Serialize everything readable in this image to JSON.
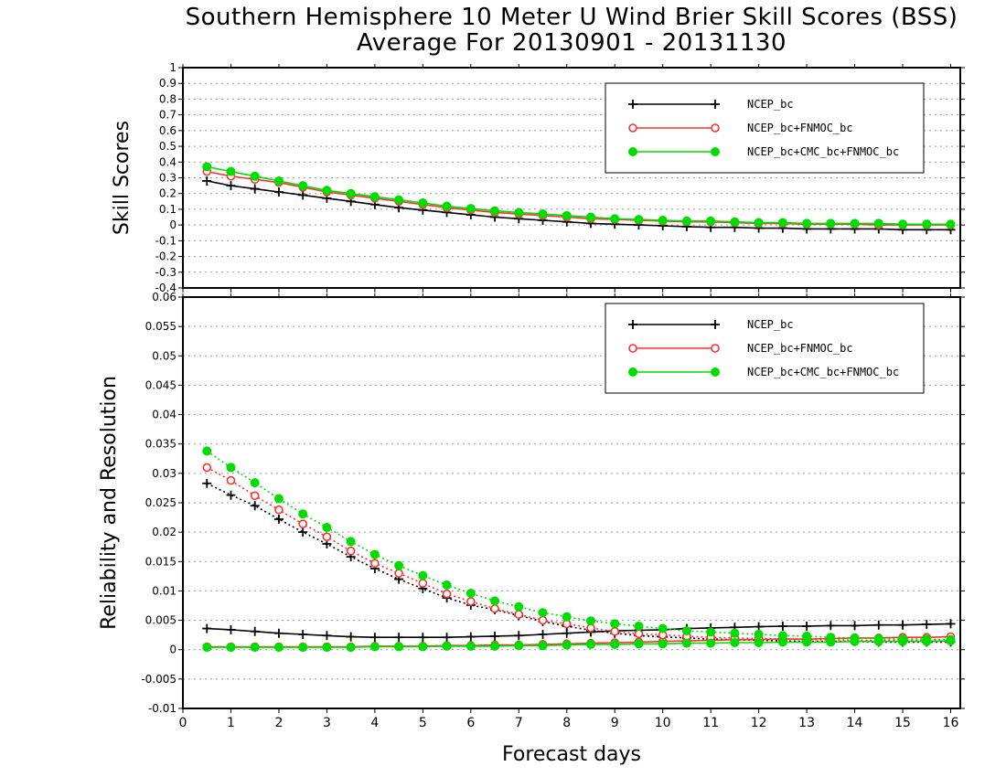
{
  "title_line1": "Southern Hemisphere 10 Meter U Wind Brier Skill Scores (BSS)",
  "title_line2": "Average For 20130901 - 20131130",
  "chart_data": [
    {
      "type": "line",
      "ylabel": "Skill Scores",
      "xlabel": "Forecast days",
      "xlim": [
        0,
        16.2
      ],
      "ylim": [
        -0.4,
        1
      ],
      "xticks": [
        "0",
        "1",
        "2",
        "3",
        "4",
        "5",
        "6",
        "7",
        "8",
        "9",
        "10",
        "11",
        "12",
        "13",
        "14",
        "15",
        "16"
      ],
      "yticks": [
        "-0.4",
        "-0.3",
        "-0.2",
        "-0.1",
        "0",
        "0.1",
        "0.2",
        "0.3",
        "0.4",
        "0.5",
        "0.6",
        "0.7",
        "0.8",
        "0.9",
        "1"
      ],
      "grid": true,
      "legend_position": "top-right",
      "x": [
        0.5,
        1,
        1.5,
        2,
        2.5,
        3,
        3.5,
        4,
        4.5,
        5,
        5.5,
        6,
        6.5,
        7,
        7.5,
        8,
        8.5,
        9,
        9.5,
        10,
        10.5,
        11,
        11.5,
        12,
        12.5,
        13,
        13.5,
        14,
        14.5,
        15,
        15.5,
        16
      ],
      "series": [
        {
          "name": "NCEP_bc",
          "color": "#000000",
          "marker": "plus",
          "values": [
            0.28,
            0.25,
            0.23,
            0.21,
            0.19,
            0.17,
            0.15,
            0.13,
            0.11,
            0.095,
            0.08,
            0.065,
            0.05,
            0.04,
            0.03,
            0.02,
            0.01,
            0.005,
            0.0,
            -0.005,
            -0.01,
            -0.015,
            -0.015,
            -0.02,
            -0.02,
            -0.025,
            -0.025,
            -0.025,
            -0.025,
            -0.03,
            -0.03,
            -0.03
          ]
        },
        {
          "name": "NCEP_bc+FNMOC_bc",
          "color": "#ff3030",
          "marker": "open-circle",
          "values": [
            0.34,
            0.31,
            0.29,
            0.27,
            0.24,
            0.21,
            0.19,
            0.17,
            0.15,
            0.13,
            0.11,
            0.095,
            0.08,
            0.07,
            0.06,
            0.05,
            0.04,
            0.035,
            0.03,
            0.025,
            0.02,
            0.02,
            0.015,
            0.01,
            0.01,
            0.005,
            0.005,
            0.005,
            0.0,
            0.0,
            0.0,
            0.0
          ]
        },
        {
          "name": "NCEP_bc+CMC_bc+FNMOC_bc",
          "color": "#00dd00",
          "marker": "filled-circle",
          "values": [
            0.37,
            0.34,
            0.31,
            0.28,
            0.25,
            0.22,
            0.2,
            0.18,
            0.16,
            0.14,
            0.12,
            0.105,
            0.09,
            0.08,
            0.07,
            0.06,
            0.05,
            0.04,
            0.035,
            0.03,
            0.025,
            0.025,
            0.02,
            0.015,
            0.015,
            0.01,
            0.01,
            0.01,
            0.01,
            0.005,
            0.005,
            0.005
          ]
        }
      ]
    },
    {
      "type": "line",
      "ylabel": "Reliability and Resolution",
      "xlabel": "Forecast days",
      "xlim": [
        0,
        16.2
      ],
      "ylim": [
        -0.01,
        0.06
      ],
      "xticks": [
        "0",
        "1",
        "2",
        "3",
        "4",
        "5",
        "6",
        "7",
        "8",
        "9",
        "10",
        "11",
        "12",
        "13",
        "14",
        "15",
        "16"
      ],
      "yticks": [
        "-0.01",
        "-0.005",
        "0",
        "0.005",
        "0.01",
        "0.015",
        "0.02",
        "0.025",
        "0.03",
        "0.035",
        "0.04",
        "0.045",
        "0.05",
        "0.055",
        "0.06"
      ],
      "grid": true,
      "legend_position": "top-right",
      "x": [
        0.5,
        1,
        1.5,
        2,
        2.5,
        3,
        3.5,
        4,
        4.5,
        5,
        5.5,
        6,
        6.5,
        7,
        7.5,
        8,
        8.5,
        9,
        9.5,
        10,
        10.5,
        11,
        11.5,
        12,
        12.5,
        13,
        13.5,
        14,
        14.5,
        15,
        15.5,
        16
      ],
      "series": [
        {
          "name": "NCEP_bc",
          "color": "#000000",
          "marker": "plus",
          "role": "reliability",
          "values": [
            0.0036,
            0.0034,
            0.0031,
            0.0028,
            0.0026,
            0.0024,
            0.0022,
            0.0021,
            0.0021,
            0.0021,
            0.0021,
            0.0022,
            0.0023,
            0.0024,
            0.0026,
            0.0028,
            0.003,
            0.0032,
            0.0033,
            0.0034,
            0.0036,
            0.0037,
            0.0038,
            0.0039,
            0.004,
            0.004,
            0.0041,
            0.0041,
            0.0042,
            0.0042,
            0.0043,
            0.0044
          ]
        },
        {
          "name": "NCEP_bc",
          "color": "#000000",
          "marker": "plus",
          "role": "resolution",
          "values": [
            0.0283,
            0.0263,
            0.0245,
            0.0222,
            0.02,
            0.018,
            0.0158,
            0.0138,
            0.012,
            0.0104,
            0.0088,
            0.0076,
            0.0068,
            0.0058,
            0.0048,
            0.004,
            0.0033,
            0.0028,
            0.0024,
            0.0022,
            0.002,
            0.0018,
            0.0017,
            0.0016,
            0.0015,
            0.0014,
            0.0014,
            0.0014,
            0.0013,
            0.0013,
            0.0013,
            0.0013
          ]
        },
        {
          "name": "NCEP_bc+FNMOC_bc",
          "color": "#ff3030",
          "marker": "open-circle",
          "role": "reliability",
          "values": [
            0.0005,
            0.0005,
            0.0005,
            0.0005,
            0.0005,
            0.0005,
            0.0005,
            0.0006,
            0.0006,
            0.0006,
            0.0007,
            0.0007,
            0.0008,
            0.0008,
            0.0009,
            0.001,
            0.0011,
            0.0012,
            0.0013,
            0.0014,
            0.0015,
            0.0016,
            0.0017,
            0.0017,
            0.0018,
            0.0018,
            0.0019,
            0.002,
            0.002,
            0.0021,
            0.0021,
            0.0022
          ]
        },
        {
          "name": "NCEP_bc+FNMOC_bc",
          "color": "#ff3030",
          "marker": "open-circle",
          "role": "resolution",
          "values": [
            0.031,
            0.0288,
            0.0262,
            0.0238,
            0.0214,
            0.0192,
            0.0168,
            0.0147,
            0.013,
            0.0113,
            0.0095,
            0.0082,
            0.007,
            0.006,
            0.005,
            0.0044,
            0.0037,
            0.0031,
            0.0027,
            0.0025,
            0.0023,
            0.0021,
            0.002,
            0.0019,
            0.0018,
            0.0017,
            0.0017,
            0.0016,
            0.0016,
            0.0016,
            0.0016,
            0.0015
          ]
        },
        {
          "name": "NCEP_bc+CMC_bc+FNMOC_bc",
          "color": "#00dd00",
          "marker": "filled-circle",
          "role": "reliability",
          "values": [
            0.0004,
            0.0004,
            0.0004,
            0.0004,
            0.0004,
            0.0004,
            0.0004,
            0.0005,
            0.0005,
            0.0005,
            0.0006,
            0.0006,
            0.0006,
            0.0007,
            0.0007,
            0.0008,
            0.0009,
            0.0009,
            0.001,
            0.001,
            0.0011,
            0.0011,
            0.0012,
            0.0012,
            0.0013,
            0.0013,
            0.0013,
            0.0014,
            0.0014,
            0.0014,
            0.0014,
            0.0015
          ]
        },
        {
          "name": "NCEP_bc+CMC_bc+FNMOC_bc",
          "color": "#00dd00",
          "marker": "filled-circle",
          "role": "resolution",
          "values": [
            0.0338,
            0.031,
            0.0284,
            0.0257,
            0.0231,
            0.0208,
            0.0184,
            0.0162,
            0.0143,
            0.0126,
            0.011,
            0.0096,
            0.0083,
            0.0073,
            0.0063,
            0.0056,
            0.0049,
            0.0044,
            0.004,
            0.0036,
            0.0032,
            0.003,
            0.0028,
            0.0026,
            0.0024,
            0.0023,
            0.0021,
            0.002,
            0.0019,
            0.0018,
            0.0018,
            0.0017
          ]
        }
      ]
    }
  ]
}
